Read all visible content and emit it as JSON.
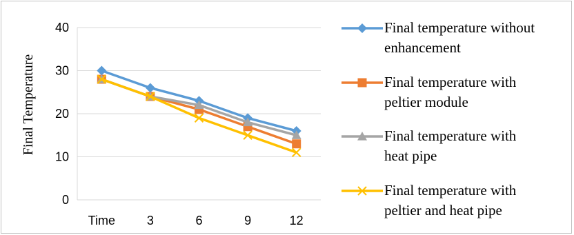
{
  "chart_data": {
    "type": "line",
    "categories": [
      "Time",
      "3",
      "6",
      "9",
      "12"
    ],
    "ylabel": "Final Temperature",
    "xlabel": "",
    "ylim": [
      0,
      40
    ],
    "yticks": [
      0,
      10,
      20,
      30,
      40
    ],
    "grid": true,
    "legend_position": "right",
    "series": [
      {
        "name": "Final temperature without enhancement",
        "name_lines": [
          "Final temperature without",
          "enhancement"
        ],
        "color": "#5b9bd5",
        "marker": "diamond",
        "values": [
          30,
          26,
          23,
          19,
          16
        ]
      },
      {
        "name": "Final temperature with peltier module",
        "name_lines": [
          "Final temperature with",
          "peltier module"
        ],
        "color": "#ed7d31",
        "marker": "square",
        "values": [
          28,
          24,
          21,
          17,
          13
        ]
      },
      {
        "name": "Final temperature with heat pipe",
        "name_lines": [
          "Final temperature with",
          "heat pipe"
        ],
        "color": "#a5a5a5",
        "marker": "triangle",
        "values": [
          28,
          24,
          22,
          18,
          15
        ]
      },
      {
        "name": "Final temperature with peltier and heat pipe",
        "name_lines": [
          "Final temperature with",
          "peltier and heat pipe"
        ],
        "color": "#ffc000",
        "marker": "x",
        "values": [
          28,
          24,
          19,
          15,
          11
        ]
      }
    ]
  }
}
